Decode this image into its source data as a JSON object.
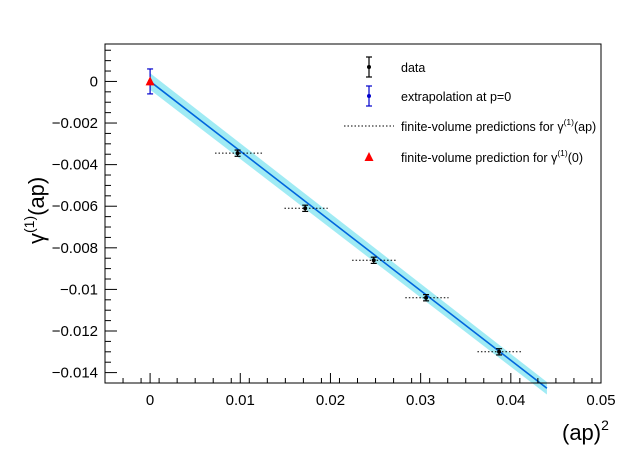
{
  "chart_data": {
    "type": "scatter",
    "xlabel": "(ap)",
    "xlabel_sup": "2",
    "ylabel_main": "γ",
    "ylabel_sup": "(1)",
    "ylabel_tail": "(ap)",
    "xlim": [
      -0.005,
      0.05
    ],
    "ylim": [
      -0.0145,
      0.0018
    ],
    "xticks": [
      0,
      0.01,
      0.02,
      0.03,
      0.04,
      0.05
    ],
    "xtick_labels": [
      "0",
      "0.01",
      "0.02",
      "0.03",
      "0.04",
      "0.05"
    ],
    "yticks": [
      0,
      -0.002,
      -0.004,
      -0.006,
      -0.008,
      -0.01,
      -0.012,
      -0.014
    ],
    "ytick_labels": [
      "0",
      "−0.002",
      "−0.004",
      "−0.006",
      "−0.008",
      "−0.01",
      "−0.012",
      "−0.014"
    ],
    "grid": false,
    "legend_position": "top-right",
    "series": [
      {
        "name": "data",
        "color": "#000000",
        "points": [
          {
            "x": 0.0097,
            "y": -0.00345,
            "yerr": 0.00015
          },
          {
            "x": 0.0172,
            "y": -0.0061,
            "yerr": 0.00015
          },
          {
            "x": 0.0248,
            "y": -0.0086,
            "yerr": 0.00015
          },
          {
            "x": 0.0306,
            "y": -0.0104,
            "yerr": 0.00015
          },
          {
            "x": 0.0387,
            "y": -0.013,
            "yerr": 0.00015
          }
        ]
      },
      {
        "name": "extrapolation at p=0",
        "color": "#0000cc",
        "points": [
          {
            "x": 0.0,
            "y": 0.0,
            "yerr": 0.0006
          }
        ]
      },
      {
        "name": "finite-volume predictions for γ(1)(ap)",
        "color": "#000000",
        "style": "dotted",
        "segments": [
          {
            "x1": 0.0072,
            "x2": 0.0125,
            "y": -0.00345
          },
          {
            "x1": 0.0149,
            "x2": 0.0197,
            "y": -0.0061
          },
          {
            "x1": 0.0224,
            "x2": 0.0273,
            "y": -0.0086
          },
          {
            "x1": 0.0283,
            "x2": 0.0331,
            "y": -0.0104
          },
          {
            "x1": 0.0363,
            "x2": 0.0412,
            "y": -0.013
          }
        ]
      },
      {
        "name": "finite-volume prediction for γ(1)(0)",
        "color": "#ff0000",
        "marker": "triangle",
        "points": [
          {
            "x": 0.0,
            "y": 0.0
          }
        ]
      }
    ],
    "fit": {
      "color": "#0066dd",
      "band_color": "#8fe8f2",
      "x_start": 0.0,
      "y_start": 0.0,
      "x_end": 0.044,
      "y_end": -0.01475,
      "band_halfwidth_start": 0.0004,
      "band_halfwidth_end": 0.0003
    },
    "legend": [
      {
        "label": "data",
        "marker": "point-errorbar",
        "color": "#000000"
      },
      {
        "label": "extrapolation at p=0",
        "marker": "point-errorbar",
        "color": "#0000cc"
      },
      {
        "label": "finite-volume predictions for γ",
        "sup": "(1)",
        "tail": "(ap)",
        "marker": "dotted-line",
        "color": "#000000"
      },
      {
        "label": "finite-volume prediction for γ",
        "sup": "(1)",
        "tail": "(0)",
        "marker": "triangle",
        "color": "#ff0000"
      }
    ]
  }
}
